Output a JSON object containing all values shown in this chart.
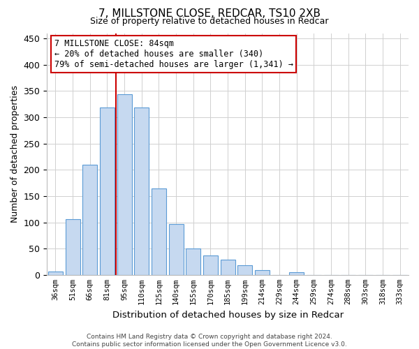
{
  "title": "7, MILLSTONE CLOSE, REDCAR, TS10 2XB",
  "subtitle": "Size of property relative to detached houses in Redcar",
  "xlabel": "Distribution of detached houses by size in Redcar",
  "ylabel": "Number of detached properties",
  "bar_labels": [
    "36sqm",
    "51sqm",
    "66sqm",
    "81sqm",
    "95sqm",
    "110sqm",
    "125sqm",
    "140sqm",
    "155sqm",
    "170sqm",
    "185sqm",
    "199sqm",
    "214sqm",
    "229sqm",
    "244sqm",
    "259sqm",
    "274sqm",
    "288sqm",
    "303sqm",
    "318sqm",
    "333sqm"
  ],
  "bar_values": [
    7,
    106,
    210,
    318,
    344,
    319,
    165,
    97,
    50,
    37,
    29,
    18,
    9,
    0,
    5,
    0,
    0,
    0,
    0,
    0,
    0
  ],
  "bar_color": "#c6d9f0",
  "bar_edge_color": "#5b9bd5",
  "vline_color": "#cc0000",
  "ylim": [
    0,
    460
  ],
  "yticks": [
    0,
    50,
    100,
    150,
    200,
    250,
    300,
    350,
    400,
    450
  ],
  "annotation_line1": "7 MILLSTONE CLOSE: 84sqm",
  "annotation_line2": "← 20% of detached houses are smaller (340)",
  "annotation_line3": "79% of semi-detached houses are larger (1,341) →",
  "annotation_box_edge": "#cc0000",
  "footer_text": "Contains HM Land Registry data © Crown copyright and database right 2024.\nContains public sector information licensed under the Open Government Licence v3.0.",
  "background_color": "#ffffff",
  "grid_color": "#d0d0d0"
}
